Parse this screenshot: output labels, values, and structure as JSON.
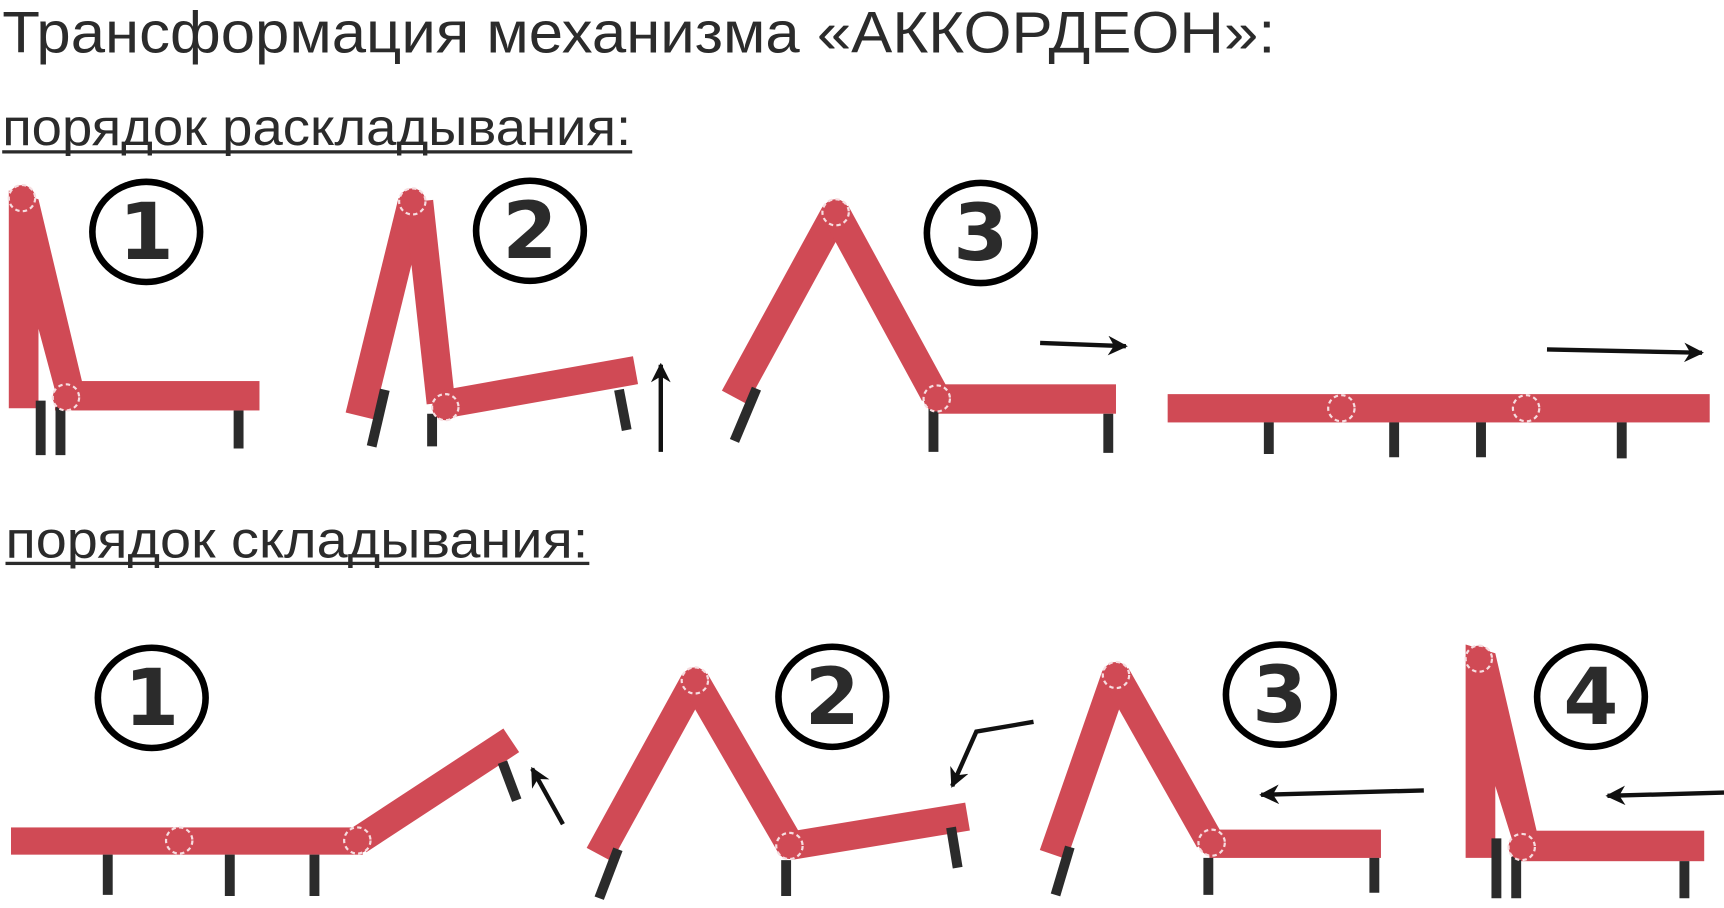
{
  "title": "Трансформация механизма «АККОРДЕОН»:",
  "unfold": {
    "heading": "порядок раскладывания:",
    "steps": [
      "1",
      "2",
      "3"
    ]
  },
  "fold": {
    "heading": "порядок складывания:",
    "steps": [
      "1",
      "2",
      "3",
      "4"
    ]
  },
  "colors": {
    "panel": "#d04a55",
    "legs": "#2b2b2b",
    "text": "#2b2b2b",
    "hinge": "#f4d0d4"
  }
}
